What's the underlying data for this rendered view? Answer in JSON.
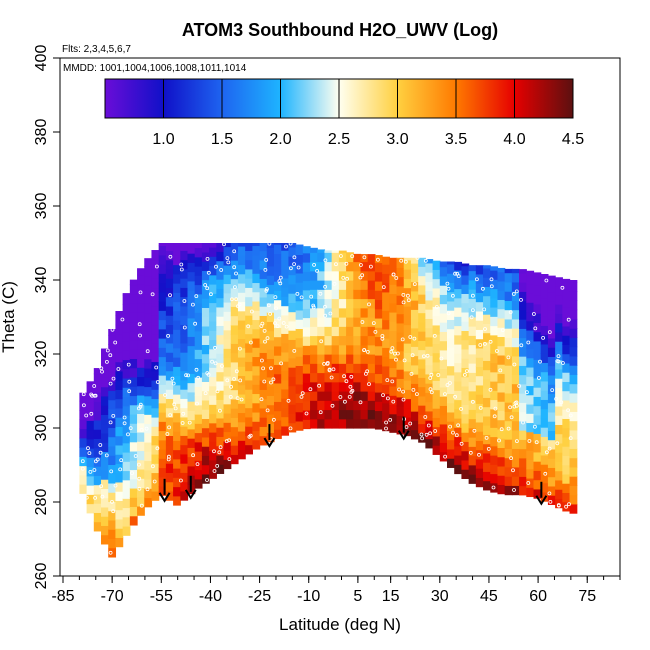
{
  "chart_data": {
    "type": "heatmap",
    "title": "ATOM3 Southbound H2O_UWV (Log)",
    "flights_note": "Flts: 2,3,4,5,6,7",
    "dates_note": "MMDD: 1001,1004,1006,1008,1011,1014",
    "xlabel": "Latitude (deg N)",
    "ylabel": "Theta (C)",
    "xlim": [
      -85,
      85
    ],
    "ylim": [
      260,
      400
    ],
    "x_ticks": [
      "-85",
      "-70",
      "-55",
      "-40",
      "-25",
      "-10",
      "5",
      "15",
      "30",
      "45",
      "60",
      "75"
    ],
    "x_tick_values": [
      -85,
      -70,
      -55,
      -40,
      -25,
      -10,
      5,
      15,
      30,
      45,
      60,
      75
    ],
    "y_ticks": [
      "260",
      "280",
      "300",
      "320",
      "340",
      "360",
      "380",
      "400"
    ],
    "y_tick_values": [
      260,
      280,
      300,
      320,
      340,
      360,
      380,
      400
    ],
    "colorbar": {
      "range": [
        0.5,
        4.5
      ],
      "ticks": [
        "1.0",
        "1.5",
        "2.0",
        "2.5",
        "3.0",
        "3.5",
        "4.0",
        "4.5"
      ],
      "tick_values": [
        1.0,
        1.5,
        2.0,
        2.5,
        3.0,
        3.5,
        4.0,
        4.5
      ],
      "colors": [
        "#6a0dd8",
        "#1010c8",
        "#1e64f0",
        "#1eb4ff",
        "#fffff0",
        "#ffd040",
        "#ff7a00",
        "#e60000",
        "#5c1010"
      ]
    },
    "arrows_at_latitude": [
      -54,
      -46,
      -22,
      19,
      61
    ],
    "coverage": {
      "latitude": [
        -80,
        -75,
        -70,
        -65,
        -60,
        -55,
        -50,
        -45,
        -40,
        -35,
        -30,
        -25,
        -20,
        -15,
        -10,
        -5,
        0,
        5,
        10,
        15,
        20,
        25,
        30,
        35,
        40,
        45,
        50,
        55,
        60,
        65,
        70
      ],
      "theta_min": [
        285,
        273,
        265,
        272,
        278,
        282,
        279,
        283,
        286,
        289,
        292,
        295,
        297,
        299,
        300,
        300,
        300,
        300,
        300,
        299,
        298,
        296,
        292,
        288,
        285,
        283,
        282,
        282,
        281,
        279,
        277
      ],
      "theta_max": [
        308,
        315,
        327,
        338,
        345,
        350,
        350,
        350,
        350,
        350,
        350,
        350,
        350,
        350,
        349,
        348,
        348,
        347,
        347,
        346,
        346,
        346,
        345,
        345,
        344,
        344,
        343,
        343,
        342,
        341,
        340
      ]
    }
  }
}
